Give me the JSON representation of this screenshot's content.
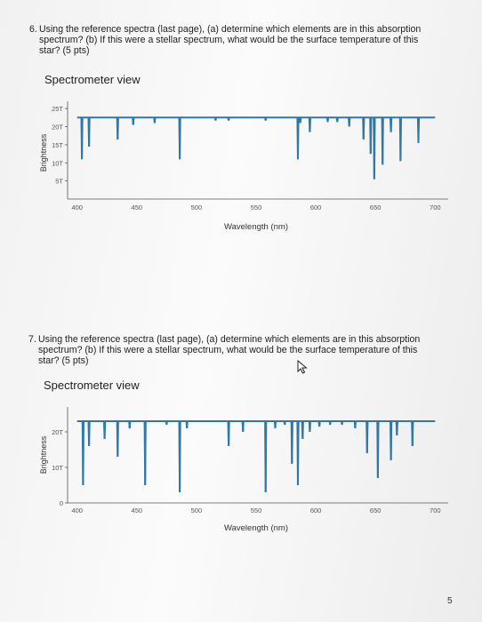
{
  "questions": [
    {
      "number": "6.",
      "lines": [
        "Using the reference spectra (last page), (a) determine which elements are in this absorption",
        "spectrum? (b) If this were a stellar spectrum, what would be the surface temperature of this",
        "star? (5 pts)"
      ],
      "view_title": "Spectrometer view"
    },
    {
      "number": "7.",
      "lines": [
        "Using the reference spectra (last page), (a) determine which elements are in this absorption",
        "spectrum? (b) If this were a stellar spectrum, what would be the surface temperature of this",
        "star? (5 pts)"
      ],
      "view_title": "Spectrometer view"
    }
  ],
  "page_number": "5",
  "icons": {
    "cursor": "mouse-pointer-icon"
  },
  "colors": {
    "line": "#2f78a8",
    "axis": "#555555"
  },
  "chart_data": [
    {
      "type": "line",
      "title": "",
      "xlabel": "Wavelength (nm)",
      "ylabel": "Brightness",
      "xlim": [
        395,
        705
      ],
      "ylim": [
        0,
        27
      ],
      "x_ticks": [
        400,
        450,
        500,
        550,
        600,
        650,
        700
      ],
      "y_ticks": [
        {
          "v": 5,
          "label": "5T"
        },
        {
          "v": 10,
          "label": "10T"
        },
        {
          "v": 15,
          "label": "15T"
        },
        {
          "v": 20,
          "label": "20T"
        },
        {
          "v": 25,
          "label": "25T"
        }
      ],
      "baseline": 22.5,
      "absorption_lines": [
        {
          "x": 404,
          "depth": 11.5
        },
        {
          "x": 410,
          "depth": 8
        },
        {
          "x": 434,
          "depth": 6
        },
        {
          "x": 447,
          "depth": 2
        },
        {
          "x": 465,
          "depth": 1.5
        },
        {
          "x": 486,
          "depth": 11.5
        },
        {
          "x": 516,
          "depth": 0.8
        },
        {
          "x": 527,
          "depth": 0.8
        },
        {
          "x": 558,
          "depth": 0.8
        },
        {
          "x": 585,
          "depth": 11.5
        },
        {
          "x": 587,
          "depth": 1.5
        },
        {
          "x": 595,
          "depth": 4
        },
        {
          "x": 610,
          "depth": 1.2
        },
        {
          "x": 618,
          "depth": 1.2
        },
        {
          "x": 628,
          "depth": 2.5
        },
        {
          "x": 640,
          "depth": 6
        },
        {
          "x": 646,
          "depth": 10
        },
        {
          "x": 649,
          "depth": 17
        },
        {
          "x": 656,
          "depth": 13
        },
        {
          "x": 663,
          "depth": 4
        },
        {
          "x": 671,
          "depth": 12
        },
        {
          "x": 686,
          "depth": 7
        }
      ]
    },
    {
      "type": "line",
      "title": "",
      "xlabel": "Wavelength (nm)",
      "ylabel": "Brightness",
      "xlim": [
        395,
        705
      ],
      "ylim": [
        0,
        27
      ],
      "x_ticks": [
        400,
        450,
        500,
        550,
        600,
        650,
        700
      ],
      "y_ticks": [
        {
          "v": 0,
          "label": "0"
        },
        {
          "v": 10,
          "label": "10T"
        },
        {
          "v": 20,
          "label": "20T"
        }
      ],
      "baseline": 23,
      "absorption_lines": [
        {
          "x": 405,
          "depth": 18
        },
        {
          "x": 410,
          "depth": 7
        },
        {
          "x": 423,
          "depth": 5
        },
        {
          "x": 434,
          "depth": 10
        },
        {
          "x": 444,
          "depth": 2
        },
        {
          "x": 457,
          "depth": 18
        },
        {
          "x": 475,
          "depth": 1
        },
        {
          "x": 486,
          "depth": 20
        },
        {
          "x": 492,
          "depth": 2
        },
        {
          "x": 527,
          "depth": 7
        },
        {
          "x": 539,
          "depth": 3
        },
        {
          "x": 558,
          "depth": 20
        },
        {
          "x": 566,
          "depth": 2
        },
        {
          "x": 574,
          "depth": 1
        },
        {
          "x": 580,
          "depth": 12
        },
        {
          "x": 585,
          "depth": 18
        },
        {
          "x": 589,
          "depth": 5
        },
        {
          "x": 595,
          "depth": 3
        },
        {
          "x": 603,
          "depth": 1.5
        },
        {
          "x": 612,
          "depth": 1
        },
        {
          "x": 622,
          "depth": 1
        },
        {
          "x": 633,
          "depth": 2
        },
        {
          "x": 643,
          "depth": 9
        },
        {
          "x": 652,
          "depth": 16
        },
        {
          "x": 663,
          "depth": 11
        },
        {
          "x": 668,
          "depth": 4
        },
        {
          "x": 681,
          "depth": 7
        }
      ]
    }
  ]
}
